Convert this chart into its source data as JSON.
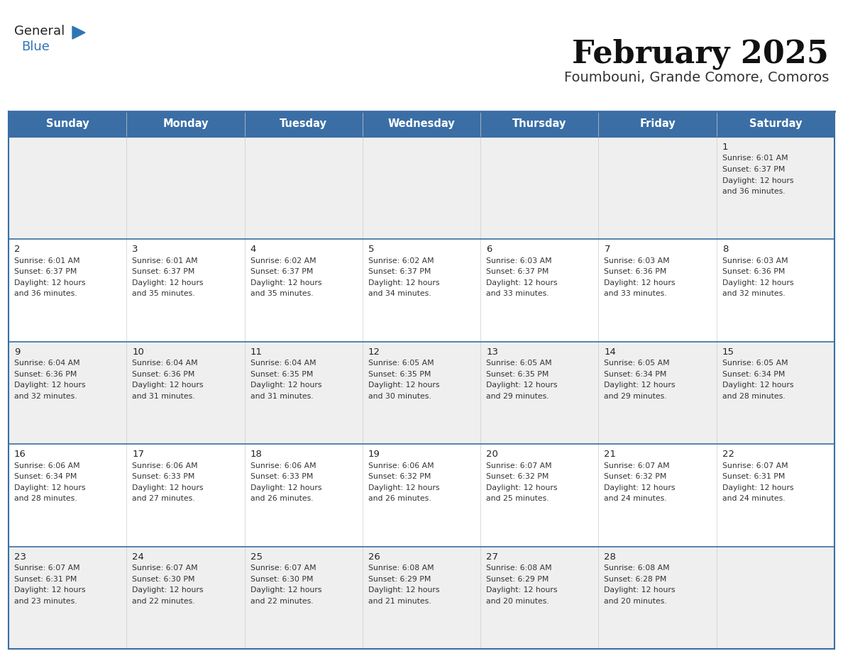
{
  "title": "February 2025",
  "subtitle": "Foumbouni, Grande Comore, Comoros",
  "days_of_week": [
    "Sunday",
    "Monday",
    "Tuesday",
    "Wednesday",
    "Thursday",
    "Friday",
    "Saturday"
  ],
  "header_bg": "#3A6EA5",
  "header_text": "#FFFFFF",
  "cell_bg_light": "#EFEFEF",
  "cell_bg_white": "#FFFFFF",
  "cell_text": "#333333",
  "day_number_color": "#222222",
  "row_separator_color": "#3A6EA5",
  "outer_border_color": "#3A6EA5",
  "cell_border_color": "#CCCCCC",
  "title_color": "#111111",
  "subtitle_color": "#333333",
  "logo_general_color": "#222222",
  "logo_blue_color": "#2E75B6",
  "calendar_data": [
    {
      "day": 1,
      "row": 0,
      "col": 6,
      "sunrise": "6:01 AM",
      "sunset": "6:37 PM",
      "daylight": "12 hours and 36 minutes"
    },
    {
      "day": 2,
      "row": 1,
      "col": 0,
      "sunrise": "6:01 AM",
      "sunset": "6:37 PM",
      "daylight": "12 hours and 36 minutes"
    },
    {
      "day": 3,
      "row": 1,
      "col": 1,
      "sunrise": "6:01 AM",
      "sunset": "6:37 PM",
      "daylight": "12 hours and 35 minutes"
    },
    {
      "day": 4,
      "row": 1,
      "col": 2,
      "sunrise": "6:02 AM",
      "sunset": "6:37 PM",
      "daylight": "12 hours and 35 minutes"
    },
    {
      "day": 5,
      "row": 1,
      "col": 3,
      "sunrise": "6:02 AM",
      "sunset": "6:37 PM",
      "daylight": "12 hours and 34 minutes"
    },
    {
      "day": 6,
      "row": 1,
      "col": 4,
      "sunrise": "6:03 AM",
      "sunset": "6:37 PM",
      "daylight": "12 hours and 33 minutes"
    },
    {
      "day": 7,
      "row": 1,
      "col": 5,
      "sunrise": "6:03 AM",
      "sunset": "6:36 PM",
      "daylight": "12 hours and 33 minutes"
    },
    {
      "day": 8,
      "row": 1,
      "col": 6,
      "sunrise": "6:03 AM",
      "sunset": "6:36 PM",
      "daylight": "12 hours and 32 minutes"
    },
    {
      "day": 9,
      "row": 2,
      "col": 0,
      "sunrise": "6:04 AM",
      "sunset": "6:36 PM",
      "daylight": "12 hours and 32 minutes"
    },
    {
      "day": 10,
      "row": 2,
      "col": 1,
      "sunrise": "6:04 AM",
      "sunset": "6:36 PM",
      "daylight": "12 hours and 31 minutes"
    },
    {
      "day": 11,
      "row": 2,
      "col": 2,
      "sunrise": "6:04 AM",
      "sunset": "6:35 PM",
      "daylight": "12 hours and 31 minutes"
    },
    {
      "day": 12,
      "row": 2,
      "col": 3,
      "sunrise": "6:05 AM",
      "sunset": "6:35 PM",
      "daylight": "12 hours and 30 minutes"
    },
    {
      "day": 13,
      "row": 2,
      "col": 4,
      "sunrise": "6:05 AM",
      "sunset": "6:35 PM",
      "daylight": "12 hours and 29 minutes"
    },
    {
      "day": 14,
      "row": 2,
      "col": 5,
      "sunrise": "6:05 AM",
      "sunset": "6:34 PM",
      "daylight": "12 hours and 29 minutes"
    },
    {
      "day": 15,
      "row": 2,
      "col": 6,
      "sunrise": "6:05 AM",
      "sunset": "6:34 PM",
      "daylight": "12 hours and 28 minutes"
    },
    {
      "day": 16,
      "row": 3,
      "col": 0,
      "sunrise": "6:06 AM",
      "sunset": "6:34 PM",
      "daylight": "12 hours and 28 minutes"
    },
    {
      "day": 17,
      "row": 3,
      "col": 1,
      "sunrise": "6:06 AM",
      "sunset": "6:33 PM",
      "daylight": "12 hours and 27 minutes"
    },
    {
      "day": 18,
      "row": 3,
      "col": 2,
      "sunrise": "6:06 AM",
      "sunset": "6:33 PM",
      "daylight": "12 hours and 26 minutes"
    },
    {
      "day": 19,
      "row": 3,
      "col": 3,
      "sunrise": "6:06 AM",
      "sunset": "6:32 PM",
      "daylight": "12 hours and 26 minutes"
    },
    {
      "day": 20,
      "row": 3,
      "col": 4,
      "sunrise": "6:07 AM",
      "sunset": "6:32 PM",
      "daylight": "12 hours and 25 minutes"
    },
    {
      "day": 21,
      "row": 3,
      "col": 5,
      "sunrise": "6:07 AM",
      "sunset": "6:32 PM",
      "daylight": "12 hours and 24 minutes"
    },
    {
      "day": 22,
      "row": 3,
      "col": 6,
      "sunrise": "6:07 AM",
      "sunset": "6:31 PM",
      "daylight": "12 hours and 24 minutes"
    },
    {
      "day": 23,
      "row": 4,
      "col": 0,
      "sunrise": "6:07 AM",
      "sunset": "6:31 PM",
      "daylight": "12 hours and 23 minutes"
    },
    {
      "day": 24,
      "row": 4,
      "col": 1,
      "sunrise": "6:07 AM",
      "sunset": "6:30 PM",
      "daylight": "12 hours and 22 minutes"
    },
    {
      "day": 25,
      "row": 4,
      "col": 2,
      "sunrise": "6:07 AM",
      "sunset": "6:30 PM",
      "daylight": "12 hours and 22 minutes"
    },
    {
      "day": 26,
      "row": 4,
      "col": 3,
      "sunrise": "6:08 AM",
      "sunset": "6:29 PM",
      "daylight": "12 hours and 21 minutes"
    },
    {
      "day": 27,
      "row": 4,
      "col": 4,
      "sunrise": "6:08 AM",
      "sunset": "6:29 PM",
      "daylight": "12 hours and 20 minutes"
    },
    {
      "day": 28,
      "row": 4,
      "col": 5,
      "sunrise": "6:08 AM",
      "sunset": "6:28 PM",
      "daylight": "12 hours and 20 minutes"
    }
  ],
  "num_rows": 5,
  "num_cols": 7,
  "row_bg_pattern": [
    0,
    1,
    0,
    1,
    0
  ]
}
